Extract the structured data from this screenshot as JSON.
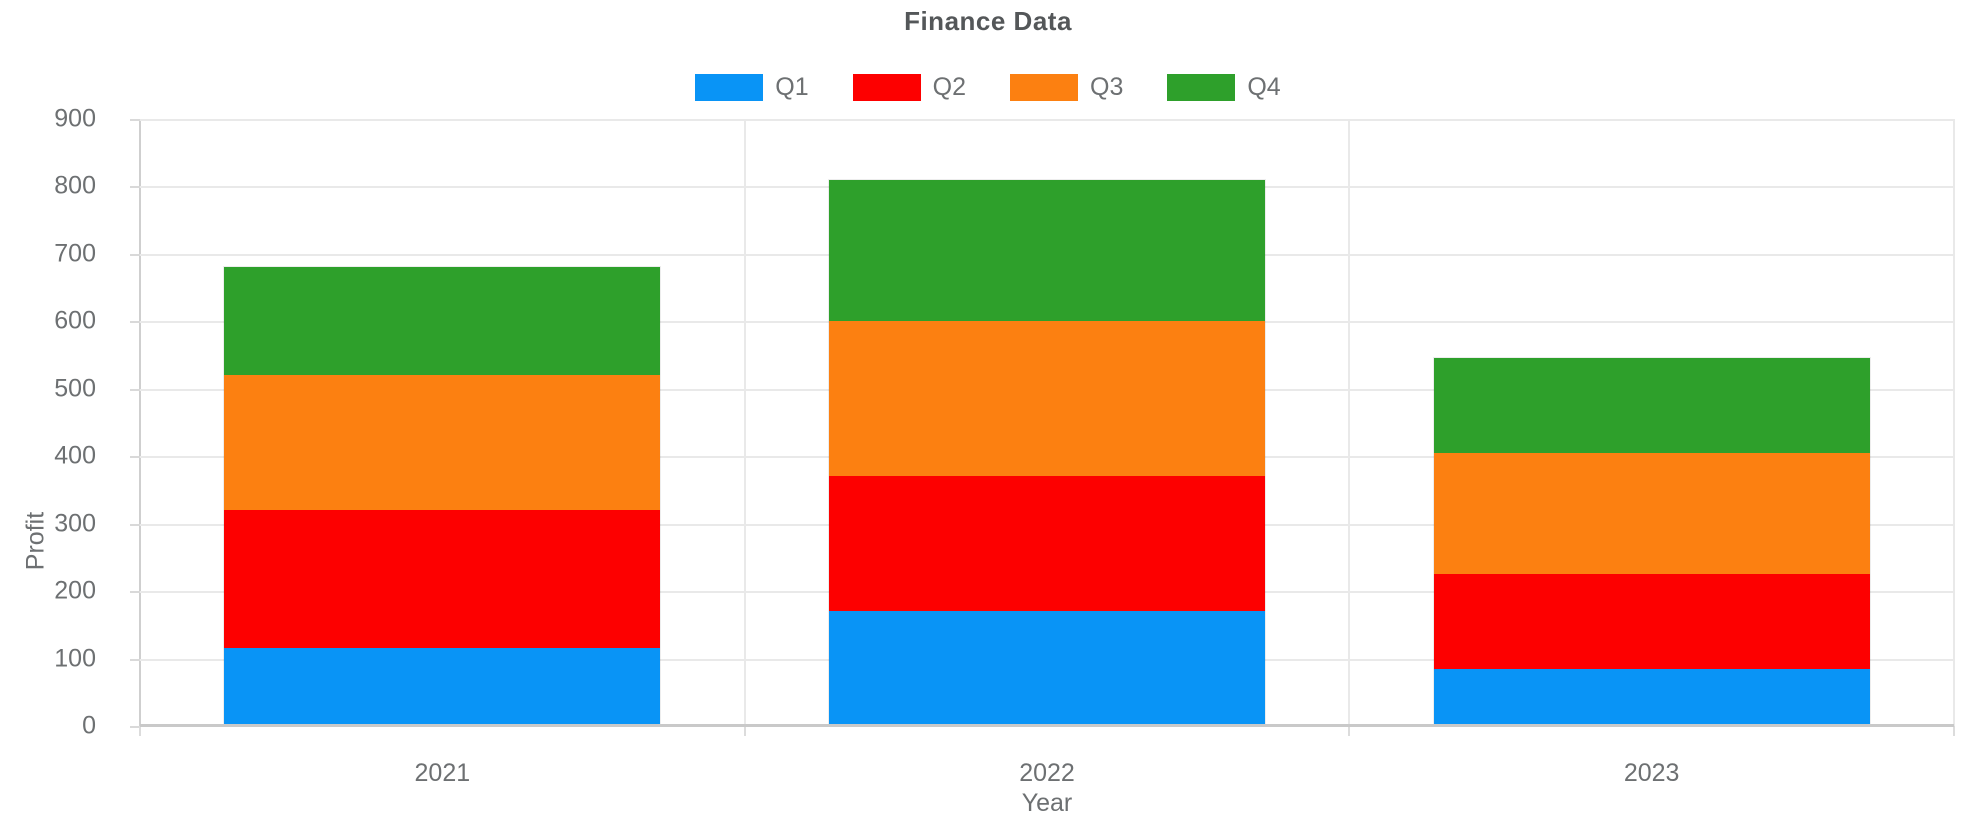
{
  "chart_data": {
    "type": "bar",
    "stacked": true,
    "title": "Finance Data",
    "xlabel": "Year",
    "ylabel": "Profit",
    "categories": [
      "2021",
      "2022",
      "2023"
    ],
    "series": [
      {
        "name": "Q1",
        "color": "#0994f6",
        "values": [
          115,
          170,
          85
        ]
      },
      {
        "name": "Q2",
        "color": "#fd0000",
        "values": [
          205,
          200,
          140
        ]
      },
      {
        "name": "Q3",
        "color": "#fc8011",
        "values": [
          200,
          230,
          180
        ]
      },
      {
        "name": "Q4",
        "color": "#2ea02b",
        "values": [
          160,
          210,
          140
        ]
      }
    ],
    "stack_totals": [
      680,
      810,
      545
    ],
    "ylim": [
      0,
      900
    ],
    "ytick_step": 100,
    "ytick_labels": [
      "0",
      "100",
      "200",
      "300",
      "400",
      "500",
      "600",
      "700",
      "800",
      "900"
    ],
    "grid": true,
    "legend_position": "top",
    "colors": {
      "title_text": "#545759",
      "axis_text": "#6d7072",
      "gridline": "#e9e9e9",
      "axis_line": "#cfcfcf",
      "background": "#ffffff"
    }
  }
}
